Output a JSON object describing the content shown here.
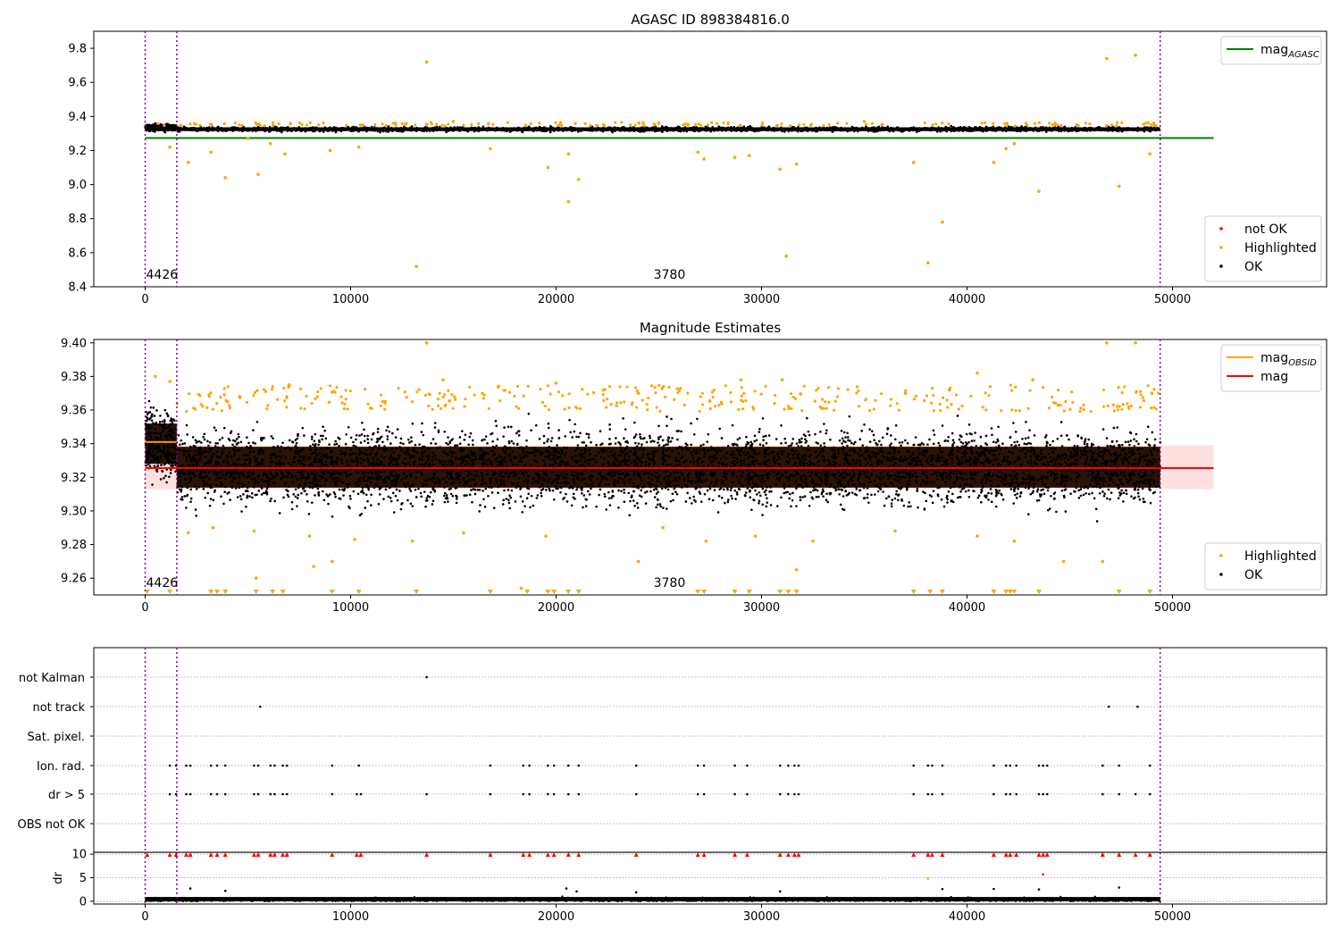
{
  "chart_data": [
    {
      "type": "scatter",
      "title": "AGASC ID 898384816.0",
      "xlim": [
        -2500,
        57500
      ],
      "ylim": [
        8.4,
        9.9
      ],
      "xticks": [
        0,
        10000,
        20000,
        30000,
        40000,
        50000
      ],
      "xtick_labels": [
        "0",
        "10000",
        "20000",
        "30000",
        "40000",
        "50000"
      ],
      "yticks": [
        8.4,
        8.6,
        8.8,
        9.0,
        9.2,
        9.4,
        9.6,
        9.8
      ],
      "ytick_labels": [
        "8.4",
        "8.6",
        "8.8",
        "9.0",
        "9.2",
        "9.4",
        "9.6",
        "9.8"
      ],
      "vlines": [
        0,
        1540,
        49400
      ],
      "obs_labels": [
        {
          "x": 0,
          "text": "4426"
        },
        {
          "x": 24700,
          "text": "3780"
        }
      ],
      "lines": [
        {
          "name": "mag",
          "sub": "AGASC",
          "y": 9.273,
          "x": [
            0,
            52000
          ],
          "color": "#008000"
        }
      ],
      "bands": [],
      "ok_band": {
        "x": [
          0,
          49400
        ],
        "y": [
          9.305,
          9.345
        ],
        "y_first": [
          9.32,
          9.365
        ],
        "x_first_end": 1540
      },
      "highlighted": [
        [
          1200,
          9.22
        ],
        [
          2100,
          9.13
        ],
        [
          3200,
          9.19
        ],
        [
          3900,
          9.04
        ],
        [
          5500,
          9.06
        ],
        [
          5000,
          9.27
        ],
        [
          6100,
          9.24
        ],
        [
          6800,
          9.18
        ],
        [
          9000,
          9.2
        ],
        [
          10400,
          9.22
        ],
        [
          13200,
          8.52
        ],
        [
          13700,
          9.72
        ],
        [
          16800,
          9.21
        ],
        [
          19600,
          9.1
        ],
        [
          20600,
          9.18
        ],
        [
          20600,
          8.9
        ],
        [
          21100,
          9.03
        ],
        [
          26900,
          9.19
        ],
        [
          27200,
          9.15
        ],
        [
          28700,
          9.16
        ],
        [
          29400,
          9.17
        ],
        [
          30900,
          9.09
        ],
        [
          31200,
          8.58
        ],
        [
          31700,
          9.12
        ],
        [
          37400,
          9.13
        ],
        [
          38100,
          8.54
        ],
        [
          38800,
          8.78
        ],
        [
          41300,
          9.13
        ],
        [
          41900,
          9.21
        ],
        [
          42300,
          9.24
        ],
        [
          43500,
          8.96
        ],
        [
          46800,
          9.74
        ],
        [
          47400,
          8.99
        ],
        [
          48200,
          9.76
        ],
        [
          48900,
          9.18
        ],
        [
          35000,
          9.37
        ],
        [
          25000,
          9.36
        ],
        [
          15000,
          9.37
        ]
      ],
      "not_ok": [],
      "legends": [
        {
          "position": "upper right",
          "entries": [
            {
              "label": "mag",
              "sub": "AGASC",
              "kind": "line",
              "color": "#008000"
            }
          ]
        },
        {
          "position": "lower right",
          "entries": [
            {
              "label": "not OK",
              "kind": "dot",
              "color": "#ff0000"
            },
            {
              "label": "Highlighted",
              "kind": "dot",
              "color": "#ffa500"
            },
            {
              "label": "OK",
              "kind": "dot",
              "color": "#000000"
            }
          ]
        }
      ]
    },
    {
      "type": "scatter",
      "title": "Magnitude Estimates",
      "xlim": [
        -2500,
        57500
      ],
      "ylim": [
        9.25,
        9.402
      ],
      "xticks": [
        0,
        10000,
        20000,
        30000,
        40000,
        50000
      ],
      "xtick_labels": [
        "0",
        "10000",
        "20000",
        "30000",
        "40000",
        "50000"
      ],
      "yticks": [
        9.26,
        9.28,
        9.3,
        9.32,
        9.34,
        9.36,
        9.38,
        9.4
      ],
      "ytick_labels": [
        "9.26",
        "9.28",
        "9.30",
        "9.32",
        "9.34",
        "9.36",
        "9.38",
        "9.40"
      ],
      "vlines": [
        0,
        1540,
        49400
      ],
      "obs_labels": [
        {
          "x": 0,
          "text": "4426"
        },
        {
          "x": 24700,
          "text": "3780"
        }
      ],
      "lines": [
        {
          "name": "mag",
          "sub": "OBSID",
          "y": 9.341,
          "x": [
            0,
            1540
          ],
          "color": "#ffa500"
        },
        {
          "name": "mag",
          "sub": "OBSID",
          "y": 9.3255,
          "x": [
            1540,
            49400
          ],
          "color": "#ffa500"
        },
        {
          "name": "mag",
          "y": 9.3255,
          "x": [
            0,
            52000
          ],
          "color": "#ff0000"
        }
      ],
      "bands": [
        {
          "x": [
            0,
            52000
          ],
          "y": [
            9.313,
            9.339
          ],
          "color": "#ff0000"
        }
      ],
      "ok_band": {
        "x": [
          1540,
          49400
        ],
        "y": [
          9.294,
          9.358
        ],
        "y_first": [
          9.31,
          9.37
        ],
        "x_first_end": 1540
      },
      "highlighted": [
        [
          500,
          9.38
        ],
        [
          1200,
          9.377
        ],
        [
          4000,
          9.365
        ],
        [
          7000,
          9.375
        ],
        [
          13700,
          9.4
        ],
        [
          14500,
          9.378
        ],
        [
          20000,
          9.376
        ],
        [
          24000,
          9.37
        ],
        [
          29000,
          9.378
        ],
        [
          31000,
          9.378
        ],
        [
          37000,
          9.37
        ],
        [
          40500,
          9.382
        ],
        [
          43200,
          9.378
        ],
        [
          46800,
          9.4
        ],
        [
          48200,
          9.4
        ],
        [
          49000,
          9.37
        ],
        [
          2100,
          9.287
        ],
        [
          3300,
          9.29
        ],
        [
          5300,
          9.288
        ],
        [
          8000,
          9.285
        ],
        [
          10200,
          9.283
        ],
        [
          13000,
          9.282
        ],
        [
          15500,
          9.287
        ],
        [
          19500,
          9.285
        ],
        [
          25200,
          9.29
        ],
        [
          27300,
          9.282
        ],
        [
          29700,
          9.285
        ],
        [
          32500,
          9.282
        ],
        [
          36500,
          9.288
        ],
        [
          40500,
          9.285
        ],
        [
          42300,
          9.282
        ],
        [
          44700,
          9.27
        ],
        [
          8200,
          9.267
        ],
        [
          9100,
          9.27
        ],
        [
          5400,
          9.26
        ],
        [
          24000,
          9.27
        ],
        [
          31700,
          9.265
        ],
        [
          46600,
          9.27
        ],
        [
          18300,
          9.254
        ]
      ],
      "clipped_low": [
        100,
        1200,
        3200,
        3500,
        3900,
        5400,
        6200,
        6700,
        9100,
        10400,
        13200,
        16800,
        18600,
        19600,
        19900,
        20600,
        21100,
        26900,
        27200,
        28700,
        29400,
        30900,
        31300,
        31700,
        37400,
        38200,
        38800,
        41300,
        41900,
        42100,
        42300,
        43500,
        47400,
        48900
      ],
      "not_ok": [],
      "legends": [
        {
          "position": "upper right",
          "entries": [
            {
              "label": "mag",
              "sub": "OBSID",
              "kind": "line",
              "color": "#ffa500"
            },
            {
              "label": "mag",
              "kind": "line",
              "color": "#ff0000"
            }
          ]
        },
        {
          "position": "lower right",
          "entries": [
            {
              "label": "Highlighted",
              "kind": "dot",
              "color": "#ffa500"
            },
            {
              "label": "OK",
              "kind": "dot",
              "color": "#000000"
            }
          ]
        }
      ]
    },
    {
      "type": "scatter",
      "title": "",
      "xlim": [
        -2500,
        57500
      ],
      "flag_rows": [
        "not Kalman",
        "not track",
        "Sat. pixel.",
        "Ion. rad.",
        "dr > 5",
        "OBS not OK"
      ],
      "flags": {
        "not Kalman": [
          13700
        ],
        "not track": [
          5600,
          46900,
          48300
        ],
        "Sat. pixel.": [],
        "Ion. rad.": [
          1200,
          1500,
          2000,
          2200,
          3200,
          3500,
          3900,
          5300,
          5500,
          6100,
          6300,
          6700,
          6900,
          9100,
          10400,
          16800,
          18400,
          18700,
          19600,
          19900,
          20600,
          21100,
          23900,
          26900,
          27200,
          28700,
          29300,
          30900,
          31300,
          31600,
          31800,
          37400,
          38100,
          38300,
          38800,
          41300,
          41900,
          42100,
          42400,
          43500,
          43700,
          43900,
          46600,
          47400,
          48900
        ],
        "dr > 5": [
          1200,
          1500,
          2000,
          2200,
          3200,
          3500,
          3900,
          5300,
          5500,
          6100,
          6300,
          6700,
          6900,
          9100,
          10300,
          10500,
          13700,
          16800,
          18400,
          18700,
          19600,
          19900,
          20600,
          21100,
          23900,
          26900,
          27200,
          28700,
          29300,
          30900,
          31300,
          31600,
          31800,
          37400,
          38100,
          38300,
          38800,
          41300,
          41900,
          42100,
          42400,
          43500,
          43700,
          43900,
          46600,
          47400,
          48200,
          48900
        ],
        "OBS not OK": []
      },
      "vlines": [
        0,
        1540,
        49400
      ]
    },
    {
      "type": "scatter",
      "title": "",
      "ylabel": "dr",
      "xlim": [
        -2500,
        57500
      ],
      "ylim": [
        -0.6,
        10.4
      ],
      "xticks": [
        0,
        10000,
        20000,
        30000,
        40000,
        50000
      ],
      "xtick_labels": [
        "0",
        "10000",
        "20000",
        "30000",
        "40000",
        "50000"
      ],
      "yticks": [
        0,
        5,
        10
      ],
      "ytick_labels": [
        "0",
        "5",
        "10"
      ],
      "hline": 10,
      "vlines": [
        0,
        1540,
        49400
      ],
      "ok_band": {
        "x": [
          0,
          49400
        ],
        "y": [
          0.0,
          0.9
        ]
      },
      "clipped_high": [
        100,
        1200,
        1500,
        2000,
        2200,
        3200,
        3500,
        3900,
        5300,
        5500,
        6100,
        6300,
        6700,
        6900,
        9100,
        10300,
        10500,
        13700,
        16800,
        18400,
        18700,
        19600,
        19900,
        20600,
        21100,
        23900,
        26900,
        27200,
        28700,
        29300,
        30900,
        31300,
        31600,
        31800,
        37400,
        38100,
        38300,
        38800,
        41300,
        41900,
        42100,
        42400,
        43500,
        43700,
        43900,
        46600,
        47400,
        48200,
        48900
      ],
      "scattered": [
        [
          2200,
          2.7
        ],
        [
          3900,
          2.2
        ],
        [
          20500,
          2.7
        ],
        [
          21000,
          2.1
        ],
        [
          23900,
          1.9
        ],
        [
          30900,
          2.1
        ],
        [
          38800,
          2.6
        ],
        [
          41300,
          2.6
        ],
        [
          43500,
          2.5
        ],
        [
          47400,
          2.9
        ],
        [
          43700,
          5.7
        ],
        [
          38100,
          4.8
        ]
      ]
    }
  ]
}
